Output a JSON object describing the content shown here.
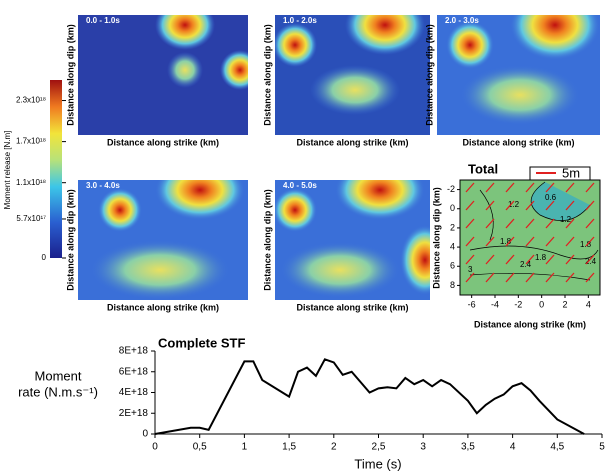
{
  "colorbar": {
    "label": "Moment release [N.m]",
    "lim": [
      0,
      2.6e+18
    ],
    "ticks": [
      {
        "value": 0,
        "label": "0"
      },
      {
        "value": 5.7e+17,
        "label": "5.7x10¹⁷"
      },
      {
        "value": 1.1e+18,
        "label": "1.1x10¹⁸"
      },
      {
        "value": 1.7e+18,
        "label": "1.7x10¹⁸"
      },
      {
        "value": 2.3e+18,
        "label": "2.3x10¹⁸"
      }
    ]
  },
  "panels": [
    {
      "title": "0.0 - 1.0s",
      "xlabel": "Distance along strike (km)",
      "ylabel": "Distance along dip (km)"
    },
    {
      "title": "1.0 - 2.0s",
      "xlabel": "Distance along strike (km)",
      "ylabel": "Distance along dip (km)"
    },
    {
      "title": "2.0 - 3.0s",
      "xlabel": "Distance along strike (km)",
      "ylabel": "Distance along dip (km)"
    },
    {
      "title": "3.0 - 4.0s",
      "xlabel": "Distance along strike (km)",
      "ylabel": "Distance along dip (km)"
    },
    {
      "title": "4.0 - 5.0s",
      "xlabel": "Distance along strike (km)",
      "ylabel": "Distance along dip (km)"
    }
  ],
  "total": {
    "title": "Total",
    "legend": "5m",
    "xlabel": "Distance along strike (km)",
    "ylabel": "Distance along dip (km)",
    "xlim": [
      -7,
      5
    ],
    "xticks": [
      -6,
      -4,
      -2,
      0,
      2,
      4
    ],
    "ylim": [
      -3,
      9
    ],
    "yticks": [
      -2,
      0,
      2,
      4,
      6,
      8
    ],
    "contour_labels": [
      "0.6",
      "1.2",
      "1.2",
      "1.8",
      "2.4",
      "3",
      "1.8",
      "2.4",
      "1.8"
    ]
  },
  "chart_data": {
    "type": "line",
    "title": "Complete STF",
    "ylabel": [
      "Moment",
      "rate (N.m.s⁻¹)"
    ],
    "xlabel": "Time (s)",
    "color": "#000000",
    "x": [
      0,
      0.4,
      0.5,
      0.6,
      1.0,
      1.1,
      1.2,
      1.5,
      1.6,
      1.7,
      1.8,
      1.9,
      2.0,
      2.1,
      2.2,
      2.3,
      2.4,
      2.5,
      2.6,
      2.7,
      2.8,
      2.9,
      3.0,
      3.1,
      3.2,
      3.3,
      3.5,
      3.6,
      3.7,
      3.8,
      3.9,
      4.0,
      4.1,
      4.2,
      4.3,
      4.5,
      4.8
    ],
    "values": [
      0,
      6e+17,
      6e+17,
      4e+17,
      7e+18,
      7e+18,
      5.2e+18,
      3.6e+18,
      6e+18,
      6.4e+18,
      5.6e+18,
      7.2e+18,
      6.9e+18,
      5.7e+18,
      6e+18,
      5e+18,
      4e+18,
      4.4e+18,
      4.5e+18,
      4.4e+18,
      5.4e+18,
      4.8e+18,
      5.2e+18,
      4.6e+18,
      5.2e+18,
      4.8e+18,
      3.2e+18,
      2e+18,
      2.8e+18,
      3.4e+18,
      3.8e+18,
      4.6e+18,
      4.9e+18,
      4.2e+18,
      3.2e+18,
      1.4e+18,
      0
    ],
    "xlim": [
      0,
      5
    ],
    "xticks": [
      0,
      {
        "value": 0.5,
        "label": "0,5"
      },
      1,
      {
        "value": 1.5,
        "label": "1,5"
      },
      2,
      {
        "value": 2.5,
        "label": "2,5"
      },
      3,
      {
        "value": 3.5,
        "label": "3,5"
      },
      4,
      {
        "value": 4.5,
        "label": "4,5"
      },
      5
    ],
    "ylim": [
      0,
      8e+18
    ],
    "yticks": [
      0,
      {
        "value": 2e+18,
        "label": "2E+18"
      },
      {
        "value": 4e+18,
        "label": "4E+18"
      },
      {
        "value": 6e+18,
        "label": "6E+18"
      },
      {
        "value": 8e+18,
        "label": "8E+18"
      }
    ]
  }
}
